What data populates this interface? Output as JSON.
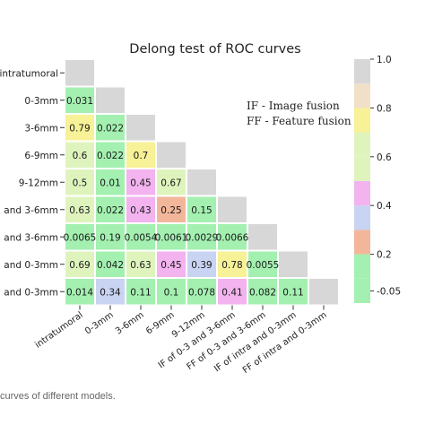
{
  "chart_data": {
    "type": "heatmap",
    "title": "Delong test of ROC curves",
    "row_labels": [
      "intratumoral",
      "0-3mm",
      "3-6mm",
      "6-9mm",
      "9-12mm",
      "and 3-6mm",
      "and 3-6mm",
      "and 0-3mm",
      "and 0-3mm"
    ],
    "col_labels": [
      "intratumoral",
      "0-3mm",
      "3-6mm",
      "6-9mm",
      "9-12mm",
      "IF of 0-3 and 3-6mm",
      "FF of 0-3 and 3-6mm",
      "IF of intra and 0-3mm",
      "FF of intra and 0-3mm"
    ],
    "cells": [
      [
        null
      ],
      [
        "0.031",
        null
      ],
      [
        "0.79",
        "0.022",
        null
      ],
      [
        "0.6",
        "0.022",
        "0.7",
        null
      ],
      [
        "0.5",
        "0.01",
        "0.45",
        "0.67",
        null
      ],
      [
        "0.63",
        "0.022",
        "0.43",
        "0.25",
        "0.15",
        null
      ],
      [
        "0.0065",
        "0.19",
        "0.0054",
        "0.0061",
        "0.0029",
        "0.0066",
        null
      ],
      [
        "0.69",
        "0.042",
        "0.63",
        "0.45",
        "0.39",
        "0.78",
        "0.0055",
        null
      ],
      [
        "0.014",
        "0.34",
        "0.11",
        "0.1",
        "0.078",
        "0.41",
        "0.082",
        "0.11",
        null
      ]
    ],
    "colorbar": {
      "range": [
        0,
        1
      ],
      "ticks": [
        "1.0",
        "0.8",
        "0.6",
        "0.4",
        "0.2",
        "0.05"
      ],
      "bands": [
        {
          "from": 0,
          "to": 0.1,
          "color": "#a3f0b0"
        },
        {
          "from": 0.1,
          "to": 0.2,
          "color": "#a3f0b0"
        },
        {
          "from": 0.2,
          "to": 0.3,
          "color": "#f2b79a"
        },
        {
          "from": 0.3,
          "to": 0.4,
          "color": "#c9d3f2"
        },
        {
          "from": 0.4,
          "to": 0.5,
          "color": "#f2b3ee"
        },
        {
          "from": 0.5,
          "to": 0.6,
          "color": "#dff4bd"
        },
        {
          "from": 0.6,
          "to": 0.7,
          "color": "#dff4bd"
        },
        {
          "from": 0.7,
          "to": 0.8,
          "color": "#f7f197"
        },
        {
          "from": 0.8,
          "to": 0.9,
          "color": "#f1e0c8"
        },
        {
          "from": 0.9,
          "to": 1.0,
          "color": "#d7d7d7"
        }
      ],
      "diagonal_color": "#d7d7d7"
    },
    "legend_notes": [
      "IF - Image fusion",
      "FF - Feature fusion"
    ]
  },
  "caption": "curves of different models."
}
